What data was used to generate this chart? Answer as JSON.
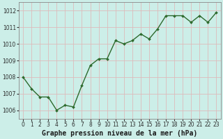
{
  "x": [
    0,
    1,
    2,
    3,
    4,
    5,
    6,
    7,
    8,
    9,
    10,
    11,
    12,
    13,
    14,
    15,
    16,
    17,
    18,
    19,
    20,
    21,
    22,
    23
  ],
  "y": [
    1008.0,
    1007.3,
    1006.8,
    1006.8,
    1006.0,
    1006.3,
    1006.2,
    1007.5,
    1008.7,
    1009.1,
    1009.1,
    1010.2,
    1010.0,
    1010.2,
    1010.6,
    1010.3,
    1010.9,
    1011.7,
    1011.7,
    1011.7,
    1011.3,
    1011.7,
    1011.3,
    1011.9
  ],
  "line_color": "#2d6a2d",
  "marker_color": "#2d6a2d",
  "bg_color": "#cceee8",
  "grid_color": "#ddbbbb",
  "xlabel": "Graphe pression niveau de la mer (hPa)",
  "ylim": [
    1005.5,
    1012.5
  ],
  "xlim": [
    -0.5,
    23.5
  ],
  "yticks": [
    1006,
    1007,
    1008,
    1009,
    1010,
    1011,
    1012
  ],
  "xticks": [
    0,
    1,
    2,
    3,
    4,
    5,
    6,
    7,
    8,
    9,
    10,
    11,
    12,
    13,
    14,
    15,
    16,
    17,
    18,
    19,
    20,
    21,
    22,
    23
  ],
  "tick_fontsize": 5.5,
  "xlabel_fontsize": 7.0,
  "line_width": 1.0,
  "marker_size": 2.0,
  "spine_color": "#888888"
}
